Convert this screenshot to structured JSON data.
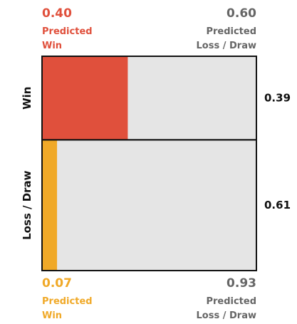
{
  "chart_data": {
    "type": "bar",
    "orientation": "horizontal",
    "stacked": true,
    "rows": [
      {
        "label": "Win",
        "proportion": 0.39,
        "proportion_label": "0.39",
        "predicted_win": 0.4,
        "predicted_loss_draw": 0.6
      },
      {
        "label": "Loss / Draw",
        "proportion": 0.61,
        "proportion_label": "0.61",
        "predicted_win": 0.07,
        "predicted_loss_draw": 0.93
      }
    ],
    "top_annotations": {
      "win_value": "0.40",
      "win_label_1": "Predicted",
      "win_label_2": "Win",
      "loss_value": "0.60",
      "loss_label_1": "Predicted",
      "loss_label_2": "Loss / Draw"
    },
    "bottom_annotations": {
      "win_value": "0.07",
      "win_label_1": "Predicted",
      "win_label_2": "Win",
      "loss_value": "0.93",
      "loss_label_1": "Predicted",
      "loss_label_2": "Loss / Draw"
    },
    "colors": {
      "win_row": "#e0503c",
      "loss_draw_row": "#f0a928",
      "remainder": "#e5e5e5",
      "border": "#111111",
      "muted_text": "#666666",
      "axis_text": "#111111"
    }
  }
}
